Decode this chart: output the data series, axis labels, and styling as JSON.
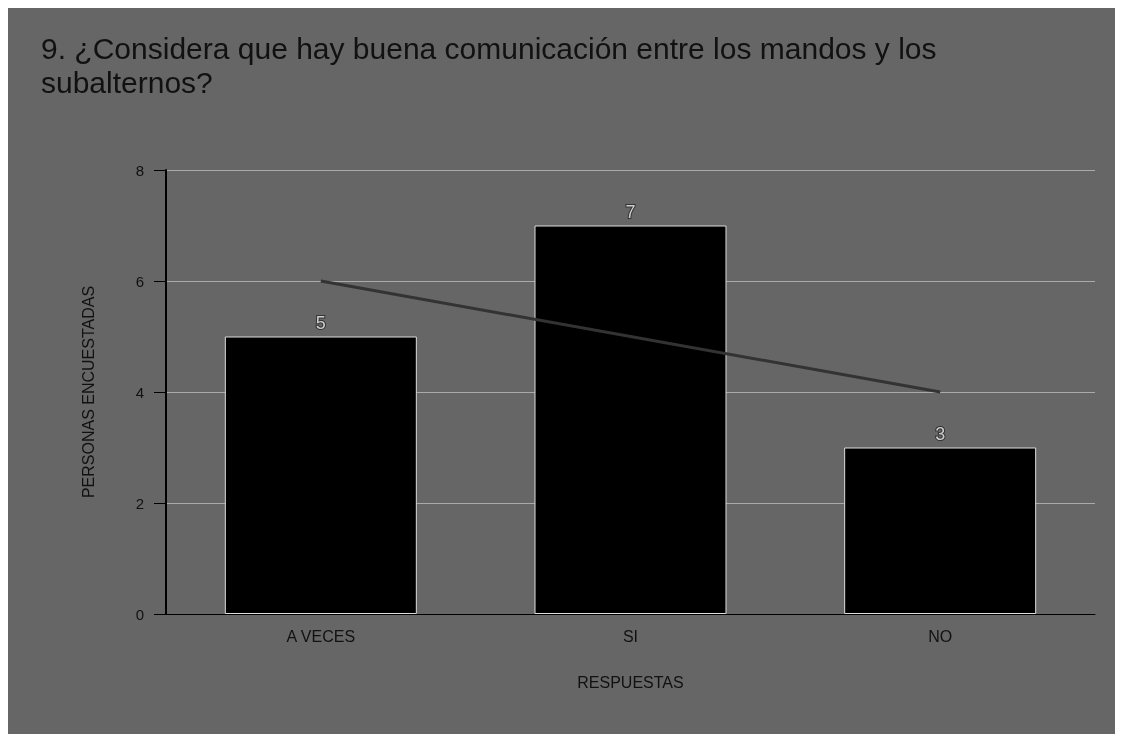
{
  "chart_data": {
    "type": "bar",
    "title": "9. ¿Considera que hay buena comunicación entre los mandos y los subalternos?",
    "xlabel": "RESPUESTAS",
    "ylabel": "PERSONAS ENCUESTADAS",
    "categories": [
      "A VECES",
      "SI",
      "NO"
    ],
    "series": [
      {
        "color": "#000000",
        "values": [
          5,
          7,
          3
        ],
        "value_labels": [
          "5",
          "7",
          "3"
        ]
      },
      {
        "type": "line",
        "color": "#333333",
        "values": [
          6,
          5,
          4
        ]
      }
    ],
    "ylim": [
      0,
      8
    ],
    "yticks": [
      0,
      2,
      4,
      6,
      8
    ],
    "grid": "y"
  }
}
